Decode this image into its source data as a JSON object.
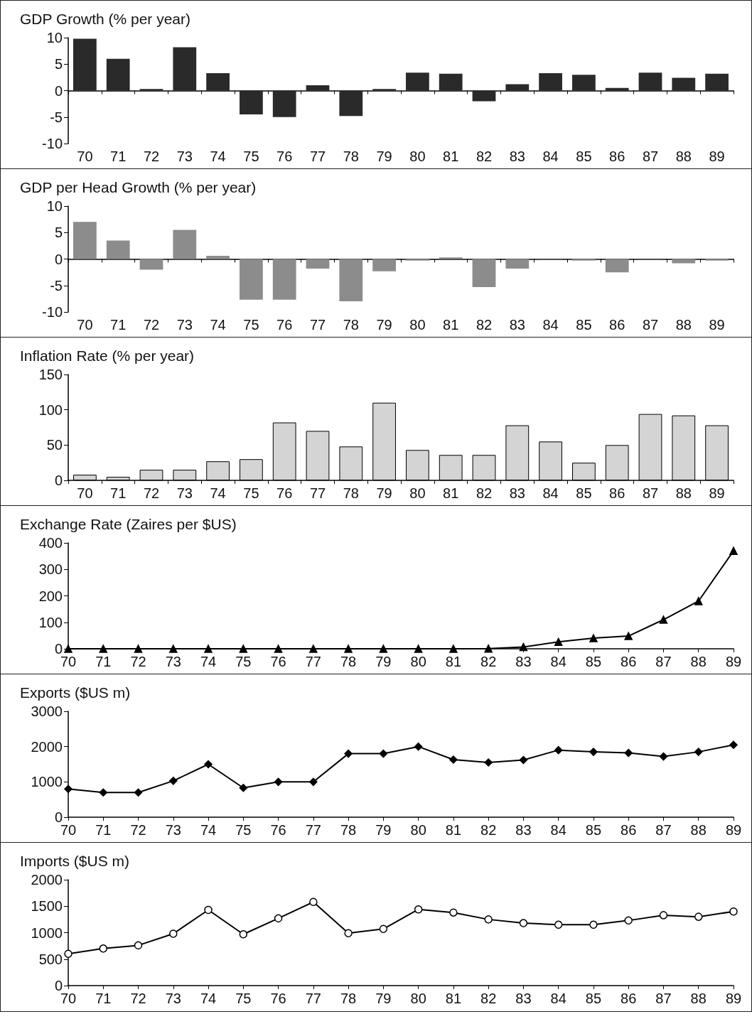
{
  "chart_data": [
    {
      "type": "bar",
      "title": "GDP Growth (% per year)",
      "categories": [
        "70",
        "71",
        "72",
        "73",
        "74",
        "75",
        "76",
        "77",
        "78",
        "79",
        "80",
        "81",
        "82",
        "83",
        "84",
        "85",
        "86",
        "87",
        "88",
        "89"
      ],
      "series": [
        {
          "color": "#2a2a2a",
          "values": [
            9.8,
            6,
            0.3,
            8.2,
            3.3,
            -4.5,
            -5,
            1,
            -4.8,
            0.3,
            3.4,
            3.2,
            -2,
            1.2,
            3.3,
            3,
            0.5,
            3.4,
            2.4,
            3.2
          ]
        }
      ],
      "ylim": [
        -10,
        10
      ],
      "yticks": [
        -10,
        -5,
        0,
        5,
        10
      ]
    },
    {
      "type": "bar",
      "title": "GDP per Head Growth (% per year)",
      "categories": [
        "70",
        "71",
        "72",
        "73",
        "74",
        "75",
        "76",
        "77",
        "78",
        "79",
        "80",
        "81",
        "82",
        "83",
        "84",
        "85",
        "86",
        "87",
        "88",
        "89"
      ],
      "series": [
        {
          "color": "#8c8c8c",
          "values": [
            7,
            3.5,
            -2,
            5.5,
            0.6,
            -7.7,
            -7.7,
            -1.8,
            -8,
            -2.3,
            -0.3,
            0.3,
            -5.3,
            -1.8,
            0.1,
            -0.3,
            -2.5,
            0.1,
            -0.8,
            -0.3
          ]
        }
      ],
      "ylim": [
        -10,
        10
      ],
      "yticks": [
        -10,
        -5,
        0,
        5,
        10
      ]
    },
    {
      "type": "bar",
      "title": "Inflation Rate (% per year)",
      "categories": [
        "70",
        "71",
        "72",
        "73",
        "74",
        "75",
        "76",
        "77",
        "78",
        "79",
        "80",
        "81",
        "82",
        "83",
        "84",
        "85",
        "86",
        "87",
        "88",
        "89"
      ],
      "series": [
        {
          "color": "#d4d4d4",
          "values": [
            8,
            5,
            15,
            15,
            27,
            30,
            82,
            70,
            48,
            110,
            43,
            36,
            36,
            78,
            55,
            25,
            50,
            94,
            92,
            78
          ]
        }
      ],
      "ylim": [
        0,
        150
      ],
      "yticks": [
        0,
        50,
        100,
        150
      ],
      "grid": false
    },
    {
      "type": "line",
      "title": "Exchange Rate (Zaires per $US)",
      "categories": [
        "70",
        "71",
        "72",
        "73",
        "74",
        "75",
        "76",
        "77",
        "78",
        "79",
        "80",
        "81",
        "82",
        "83",
        "84",
        "85",
        "86",
        "87",
        "88",
        "89"
      ],
      "series": [
        {
          "color": "#000000",
          "values": [
            0,
            0,
            0,
            0,
            0,
            0,
            0,
            0,
            0,
            0,
            0,
            0,
            1,
            7,
            26,
            40,
            48,
            110,
            180,
            370
          ]
        }
      ],
      "ylim": [
        0,
        400
      ],
      "yticks": [
        0,
        100,
        200,
        300,
        400
      ],
      "grid": false,
      "marker": "triangle"
    },
    {
      "type": "line",
      "title": "Exports ($US m)",
      "categories": [
        "70",
        "71",
        "72",
        "73",
        "74",
        "75",
        "76",
        "77",
        "78",
        "79",
        "80",
        "81",
        "82",
        "83",
        "84",
        "85",
        "86",
        "87",
        "88",
        "89"
      ],
      "series": [
        {
          "color": "#000000",
          "values": [
            800,
            700,
            700,
            1030,
            1500,
            830,
            1000,
            1000,
            1800,
            1800,
            2000,
            1630,
            1550,
            1620,
            1900,
            1850,
            1820,
            1720,
            1850,
            2050
          ]
        }
      ],
      "ylim": [
        0,
        3000
      ],
      "yticks": [
        0,
        1000,
        2000,
        3000
      ],
      "grid": false,
      "marker": "diamond"
    },
    {
      "type": "line",
      "title": "Imports ($US m)",
      "categories": [
        "70",
        "71",
        "72",
        "73",
        "74",
        "75",
        "76",
        "77",
        "78",
        "79",
        "80",
        "81",
        "82",
        "83",
        "84",
        "85",
        "86",
        "87",
        "88",
        "89"
      ],
      "series": [
        {
          "color": "#000000",
          "values": [
            600,
            700,
            760,
            980,
            1430,
            970,
            1270,
            1580,
            990,
            1070,
            1440,
            1380,
            1250,
            1180,
            1150,
            1150,
            1230,
            1330,
            1300,
            1400
          ]
        }
      ],
      "ylim": [
        0,
        2000
      ],
      "yticks": [
        0,
        500,
        1000,
        1500,
        2000
      ],
      "grid": false,
      "marker": "circle"
    }
  ]
}
